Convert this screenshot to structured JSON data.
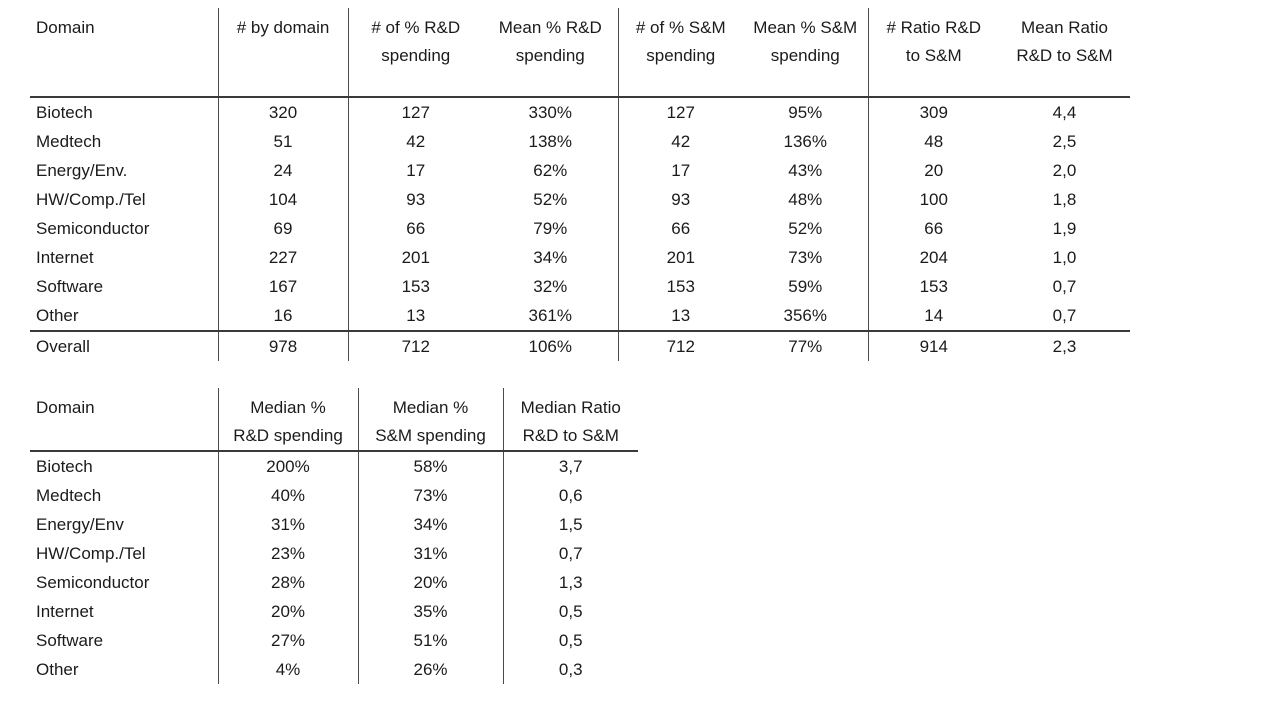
{
  "colors": {
    "background": "#ffffff",
    "text": "#1b1b1b",
    "line": "#3a3a3a"
  },
  "table1": {
    "title": "mean-spending-by-domain",
    "headers": [
      "Domain",
      "# by domain",
      "# of % R&D\nspending",
      "Mean % R&D\nspending",
      "# of % S&M\nspending",
      "Mean % S&M\nspending",
      "# Ratio R&D\nto S&M",
      "Mean Ratio\nR&D to S&M"
    ],
    "rows": [
      [
        "Biotech",
        "320",
        "127",
        "330%",
        "127",
        "95%",
        "309",
        "4,4"
      ],
      [
        "Medtech",
        "51",
        "42",
        "138%",
        "42",
        "136%",
        "48",
        "2,5"
      ],
      [
        "Energy/Env.",
        "24",
        "17",
        "62%",
        "17",
        "43%",
        "20",
        "2,0"
      ],
      [
        "HW/Comp./Tel",
        "104",
        "93",
        "52%",
        "93",
        "48%",
        "100",
        "1,8"
      ],
      [
        "Semiconductor",
        "69",
        "66",
        "79%",
        "66",
        "52%",
        "66",
        "1,9"
      ],
      [
        "Internet",
        "227",
        "201",
        "34%",
        "201",
        "73%",
        "204",
        "1,0"
      ],
      [
        "Software",
        "167",
        "153",
        "32%",
        "153",
        "59%",
        "153",
        "0,7"
      ],
      [
        "Other",
        "16",
        "13",
        "361%",
        "13",
        "356%",
        "14",
        "0,7"
      ]
    ],
    "overall": [
      "Overall",
      "978",
      "712",
      "106%",
      "712",
      "77%",
      "914",
      "2,3"
    ]
  },
  "table2": {
    "title": "median-spending-by-domain",
    "headers": [
      "Domain",
      "Median %\nR&D spending",
      "Median %\nS&M spending",
      "Median Ratio\nR&D to S&M"
    ],
    "rows": [
      [
        "Biotech",
        "200%",
        "58%",
        "3,7"
      ],
      [
        "Medtech",
        "40%",
        "73%",
        "0,6"
      ],
      [
        "Energy/Env",
        "31%",
        "34%",
        "1,5"
      ],
      [
        "HW/Comp./Tel",
        "23%",
        "31%",
        "0,7"
      ],
      [
        "Semiconductor",
        "28%",
        "20%",
        "1,3"
      ],
      [
        "Internet",
        "20%",
        "35%",
        "0,5"
      ],
      [
        "Software",
        "27%",
        "51%",
        "0,5"
      ],
      [
        "Other",
        "4%",
        "26%",
        "0,3"
      ]
    ]
  }
}
